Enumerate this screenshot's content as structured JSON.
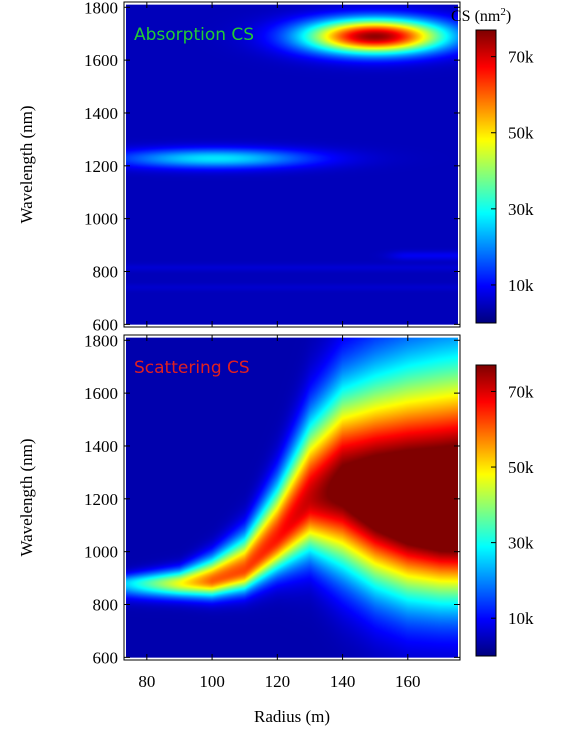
{
  "chart_data": [
    {
      "type": "heatmap",
      "panel_label": "Absorption CS",
      "panel_label_color": "#22cc33",
      "xlim": [
        73,
        176
      ],
      "ylim": [
        590,
        1820
      ],
      "data_ylim": [
        600,
        1810
      ],
      "x_ticks": [
        80,
        100,
        120,
        140,
        160
      ],
      "y_ticks": [
        600,
        800,
        1000,
        1200,
        1400,
        1600,
        1800
      ],
      "ylabel": "Wavelength (nm)",
      "colorbar": {
        "title": "CS (nm",
        "title_sup": "2",
        "title_end": ")",
        "min": 0,
        "max": 77000,
        "ticks": [
          10000,
          30000,
          50000,
          70000
        ],
        "tick_labels": [
          "10k",
          "30k",
          "50k",
          "70k"
        ],
        "colormap": "jet"
      },
      "background_value": 3000,
      "features": [
        {
          "kind": "hotspot",
          "x": 150,
          "y": 1690,
          "sx": 15,
          "sy": 45,
          "value": 75000
        },
        {
          "kind": "hotspot",
          "x": 101,
          "y": 1228,
          "sx": 21,
          "sy": 26,
          "value": 24000
        },
        {
          "kind": "band",
          "y": 860,
          "x_from": 160,
          "sy": 12,
          "value": 4500
        },
        {
          "kind": "band",
          "y": 815,
          "x_from": 73,
          "sy": 10,
          "value": 2000
        },
        {
          "kind": "band",
          "y": 740,
          "x_from": 73,
          "sy": 10,
          "value": 1500
        }
      ]
    },
    {
      "type": "heatmap",
      "panel_label": "Scattering CS",
      "panel_label_color": "#e02020",
      "xlim": [
        73,
        176
      ],
      "ylim": [
        590,
        1820
      ],
      "data_ylim": [
        600,
        1810
      ],
      "x_ticks": [
        80,
        100,
        120,
        140,
        160
      ],
      "x_tick_labels": [
        "80",
        "100",
        "120",
        "140",
        "160"
      ],
      "y_ticks": [
        600,
        800,
        1000,
        1200,
        1400,
        1600,
        1800
      ],
      "xlabel": "Radius (m)",
      "ylabel": "Wavelength (nm)",
      "colorbar": {
        "min": 0,
        "max": 77000,
        "ticks": [
          10000,
          30000,
          50000,
          70000
        ],
        "tick_labels": [
          "10k",
          "30k",
          "50k",
          "70k"
        ],
        "colormap": "jet"
      },
      "ridge": {
        "x": [
          73,
          90,
          100,
          110,
          120,
          130,
          140,
          150,
          160,
          170,
          176
        ],
        "center_y": [
          880,
          880,
          890,
          930,
          1050,
          1200,
          1240,
          1200,
          1170,
          1150,
          1150
        ],
        "upper_width": [
          40,
          60,
          100,
          150,
          230,
          330,
          420,
          500,
          560,
          600,
          610
        ],
        "lower_width": [
          60,
          60,
          70,
          90,
          140,
          230,
          330,
          360,
          370,
          360,
          360
        ],
        "peak": [
          22000,
          46000,
          60000,
          62000,
          66000,
          72000,
          82000,
          90000,
          95000,
          98000,
          99000
        ]
      }
    }
  ]
}
